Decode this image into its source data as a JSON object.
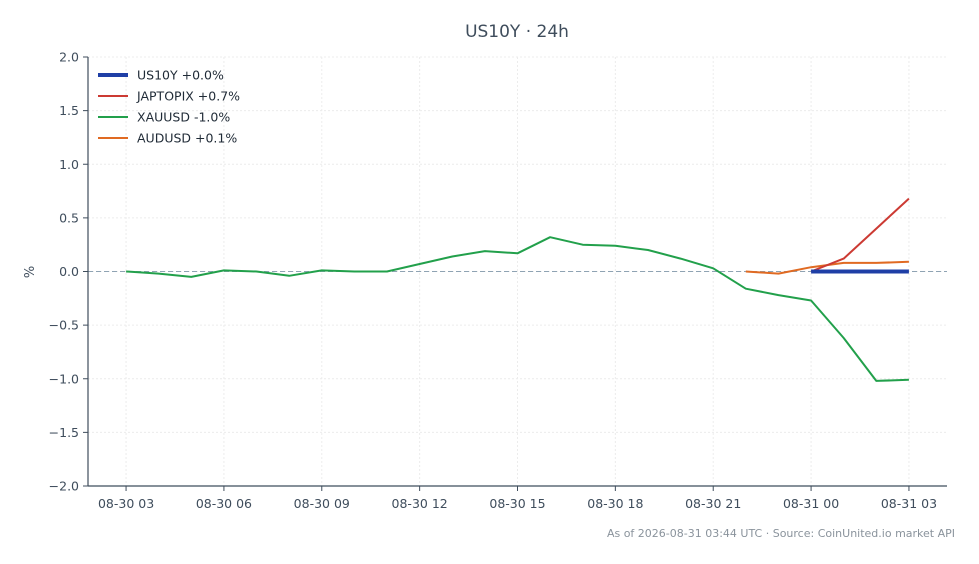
{
  "chart_data": {
    "type": "line",
    "title": "US10Y · 24h",
    "ylabel": "%",
    "xlabel": "",
    "ylim": [
      -2.0,
      2.0
    ],
    "yticks": [
      2.0,
      1.5,
      1.0,
      0.5,
      0.0,
      -0.5,
      -1.0,
      -1.5,
      -2.0
    ],
    "ytick_labels": [
      "2.0",
      "1.5",
      "1.0",
      "0.5",
      "0.0",
      "−0.5",
      "−1.0",
      "−1.5",
      "−2.0"
    ],
    "xlim": [
      "08-30 01:50",
      "08-31 04:10"
    ],
    "xticks": [
      "08-30 03:00",
      "08-30 06:00",
      "08-30 09:00",
      "08-30 12:00",
      "08-30 15:00",
      "08-30 18:00",
      "08-30 21:00",
      "08-31 00:00",
      "08-31 03:00"
    ],
    "xtick_labels": [
      "08-30 03",
      "08-30 06",
      "08-30 09",
      "08-30 12",
      "08-30 15",
      "08-30 18",
      "08-30 21",
      "08-31 00",
      "08-31 03"
    ],
    "grid": true,
    "zero_line": true,
    "legend_position": "top-left",
    "series": [
      {
        "name": "US10Y +0.0%",
        "color": "#1f3fa6",
        "x": [
          "08-31 00:00",
          "08-31 01:00",
          "08-31 02:00",
          "08-31 03:00"
        ],
        "y": [
          0.0,
          0.0,
          0.0,
          0.0
        ]
      },
      {
        "name": "JAPTOPIX +0.7%",
        "color": "#cc3a33",
        "x": [
          "08-31 00:00",
          "08-31 01:00",
          "08-31 02:00",
          "08-31 03:00"
        ],
        "y": [
          0.0,
          0.12,
          0.4,
          0.68
        ]
      },
      {
        "name": "XAUUSD -1.0%",
        "color": "#22a04b",
        "x": [
          "08-30 03:00",
          "08-30 04:00",
          "08-30 05:00",
          "08-30 06:00",
          "08-30 07:00",
          "08-30 08:00",
          "08-30 09:00",
          "08-30 10:00",
          "08-30 11:00",
          "08-30 12:00",
          "08-30 13:00",
          "08-30 14:00",
          "08-30 15:00",
          "08-30 16:00",
          "08-30 17:00",
          "08-30 18:00",
          "08-30 19:00",
          "08-30 20:00",
          "08-30 21:00",
          "08-30 22:00",
          "08-30 23:00",
          "08-31 00:00",
          "08-31 01:00",
          "08-31 02:00",
          "08-31 03:00"
        ],
        "y": [
          0.0,
          -0.02,
          -0.05,
          0.01,
          0.0,
          -0.04,
          0.01,
          0.0,
          0.0,
          0.07,
          0.14,
          0.19,
          0.17,
          0.32,
          0.25,
          0.24,
          0.2,
          0.12,
          0.03,
          -0.16,
          -0.22,
          -0.27,
          -0.62,
          -1.02,
          -1.01
        ]
      },
      {
        "name": "AUDUSD +0.1%",
        "color": "#e06a22",
        "x": [
          "08-30 22:00",
          "08-30 23:00",
          "08-31 00:00",
          "08-31 01:00",
          "08-31 02:00",
          "08-31 03:00"
        ],
        "y": [
          0.0,
          -0.02,
          0.04,
          0.08,
          0.08,
          0.09
        ]
      }
    ],
    "footer": "As of 2026-08-31 03:44 UTC · Source: CoinUnited.io market API"
  }
}
